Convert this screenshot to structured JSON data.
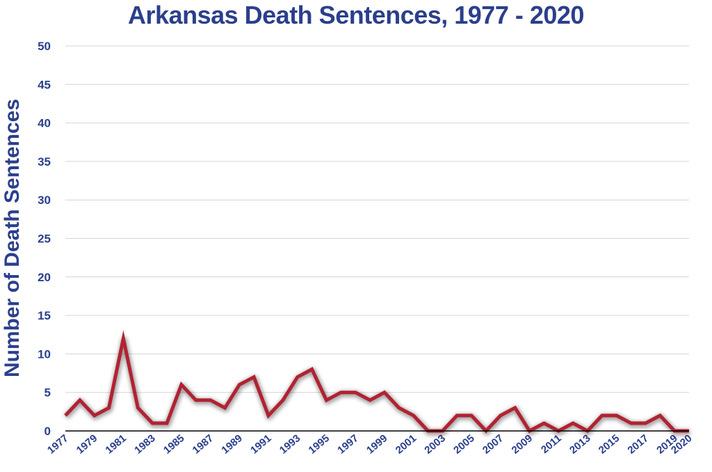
{
  "chart_data": {
    "type": "line",
    "title": "Arkansas Death Sentences, 1977 - 2020",
    "xlabel": "",
    "ylabel": "Number of Death Sentences",
    "ylim": [
      0,
      50
    ],
    "yticks": [
      0,
      5,
      10,
      15,
      20,
      25,
      30,
      35,
      40,
      45,
      50
    ],
    "xtick_labels": [
      "1977",
      "1979",
      "1981",
      "1983",
      "1985",
      "1987",
      "1989",
      "1991",
      "1993",
      "1995",
      "1997",
      "1999",
      "2001",
      "2003",
      "2005",
      "2007",
      "2009",
      "2011",
      "2013",
      "2015",
      "2017",
      "2019",
      "2020"
    ],
    "grid": true,
    "legend": "none",
    "colors": {
      "line": "#b22232",
      "text": "#2b3f8c",
      "grid": "#d4d4d4",
      "axis": "#000000"
    },
    "x": [
      1977,
      1978,
      1979,
      1980,
      1981,
      1982,
      1983,
      1984,
      1985,
      1986,
      1987,
      1988,
      1989,
      1990,
      1991,
      1992,
      1993,
      1994,
      1995,
      1996,
      1997,
      1998,
      1999,
      2000,
      2001,
      2002,
      2003,
      2004,
      2005,
      2006,
      2007,
      2008,
      2009,
      2010,
      2011,
      2012,
      2013,
      2014,
      2015,
      2016,
      2017,
      2018,
      2019,
      2020
    ],
    "series": [
      {
        "values": [
          2,
          4,
          2,
          3,
          12,
          3,
          1,
          1,
          6,
          4,
          4,
          3,
          6,
          7,
          2,
          4,
          7,
          8,
          4,
          5,
          5,
          4,
          5,
          3,
          2,
          0,
          0,
          2,
          2,
          0,
          2,
          3,
          0,
          1,
          0,
          1,
          0,
          2,
          2,
          1,
          1,
          2,
          0,
          0
        ]
      }
    ]
  }
}
